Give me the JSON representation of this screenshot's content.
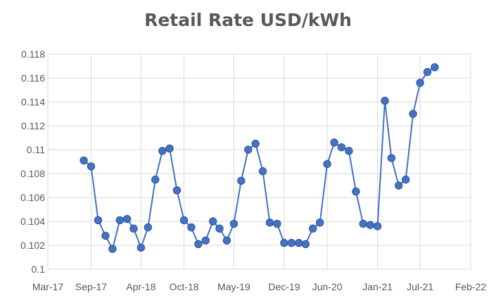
{
  "chart_data": {
    "type": "line",
    "title": "Retail Rate USD/kWh",
    "xlabel": "",
    "ylabel": "",
    "ylim": [
      0.1,
      0.118
    ],
    "xlim": [
      "2017-03-01",
      "2022-02-01"
    ],
    "y_ticks": [
      "0.1",
      "0.102",
      "0.104",
      "0.106",
      "0.108",
      "0.11",
      "0.112",
      "0.114",
      "0.116",
      "0.118"
    ],
    "x_ticks": [
      {
        "label": "Mar-17",
        "date": "2017-03-01"
      },
      {
        "label": "Sep-17",
        "date": "2017-09-01"
      },
      {
        "label": "Apr-18",
        "date": "2018-04-01"
      },
      {
        "label": "Oct-18",
        "date": "2018-10-01"
      },
      {
        "label": "May-19",
        "date": "2019-05-01"
      },
      {
        "label": "Dec-19",
        "date": "2019-12-01"
      },
      {
        "label": "Jun-20",
        "date": "2020-06-01"
      },
      {
        "label": "Jan-21",
        "date": "2021-01-01"
      },
      {
        "label": "Jul-21",
        "date": "2021-07-01"
      },
      {
        "label": "Feb-22",
        "date": "2022-02-01"
      }
    ],
    "grid": true,
    "series": [
      {
        "color": "#4472c4",
        "x": [
          "2017-08-01",
          "2017-09-01",
          "2017-10-01",
          "2017-11-01",
          "2017-12-01",
          "2018-01-01",
          "2018-02-01",
          "2018-03-01",
          "2018-04-01",
          "2018-05-01",
          "2018-06-01",
          "2018-07-01",
          "2018-08-01",
          "2018-09-01",
          "2018-10-01",
          "2018-11-01",
          "2018-12-01",
          "2019-01-01",
          "2019-02-01",
          "2019-03-01",
          "2019-04-01",
          "2019-05-01",
          "2019-06-01",
          "2019-07-01",
          "2019-08-01",
          "2019-09-01",
          "2019-10-01",
          "2019-11-01",
          "2019-12-01",
          "2020-01-01",
          "2020-02-01",
          "2020-03-01",
          "2020-04-01",
          "2020-05-01",
          "2020-06-01",
          "2020-07-01",
          "2020-08-01",
          "2020-09-01",
          "2020-10-01",
          "2020-11-01",
          "2020-12-01",
          "2021-01-01",
          "2021-02-01",
          "2021-03-01",
          "2021-04-01",
          "2021-05-01",
          "2021-06-01",
          "2021-07-01",
          "2021-08-01",
          "2021-09-01"
        ],
        "y": [
          0.1091,
          0.1086,
          0.1041,
          0.1028,
          0.1017,
          0.1041,
          0.1042,
          0.1034,
          0.1018,
          0.1035,
          0.1075,
          0.1099,
          0.1101,
          0.1066,
          0.1041,
          0.1035,
          0.1021,
          0.1024,
          0.104,
          0.1034,
          0.1024,
          0.1038,
          0.1074,
          0.11,
          0.1105,
          0.1082,
          0.1039,
          0.1038,
          0.1022,
          0.1022,
          0.1022,
          0.1021,
          0.1034,
          0.1039,
          0.1088,
          0.1106,
          0.1102,
          0.1099,
          0.1065,
          0.1038,
          0.1037,
          0.1036,
          0.1141,
          0.1093,
          0.107,
          0.1075,
          0.113,
          0.1156,
          0.1165,
          0.1169
        ]
      }
    ]
  }
}
